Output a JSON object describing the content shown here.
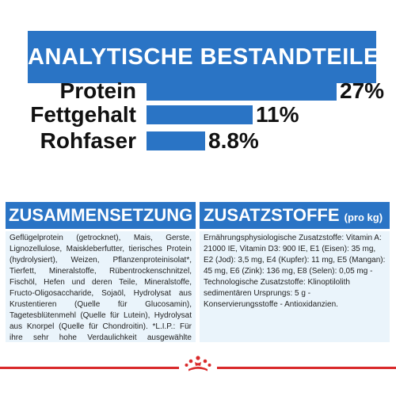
{
  "title": "ANALYTISCHE BESTANDTEILE",
  "nutrients": [
    {
      "label": "Protein",
      "value": "27%",
      "fraction": 1.0
    },
    {
      "label": "Fettgehalt",
      "value": "11%",
      "fraction": 0.56
    },
    {
      "label": "Rohfaser",
      "value": "8.8%",
      "fraction": 0.31
    }
  ],
  "composition": {
    "heading": "ZUSAMMENSETZUNG",
    "text": "Geflügelprotein (getrocknet), Mais, Gerste, Lignozellulose, Maiskleberfutter, tierisches Protein (hydrolysiert), Weizen, Pflanzenproteinisolat*, Tierfett, Mineralstoffe, Rübentrockenschnitzel, Fischöl, Hefen und deren Teile, Mineralstoffe, Fructo-Oligosaccharide, Sojaöl, Hydrolysat aus Krustentieren (Quelle für Glucosamin), Tagetesblütenmehl (Quelle für Lutein), Hydrolysat aus Knorpel (Quelle für Chondroitin). *L.I.P.: Für ihre sehr hohe Verdaulichkeit ausgewählte Proteine."
  },
  "additives": {
    "heading": "ZUSATZSTOFFE",
    "heading_suffix": "(pro kg)",
    "text": "Ernährungsphysiologische Zusatzstoffe: Vitamin A: 21000 IE, Vitamin D3: 900 IE, E1 (Eisen): 35 mg, E2 (Jod): 3,5 mg, E4 (Kupfer): 11 mg, E5 (Mangan): 45 mg, E6 (Zink): 136 mg, E8 (Selen): 0,05 mg - Technologische Zusatzstoffe: Klinoptilolith sedimentären Ursprungs: 5 g - Konservierungsstoffe - Antioxidanzien."
  },
  "colors": {
    "primary_blue": "#2a74c5",
    "light_blue": "#eaf4fb",
    "accent_red": "#d9292a"
  },
  "footer": {
    "logo_icon": "crown-icon"
  }
}
